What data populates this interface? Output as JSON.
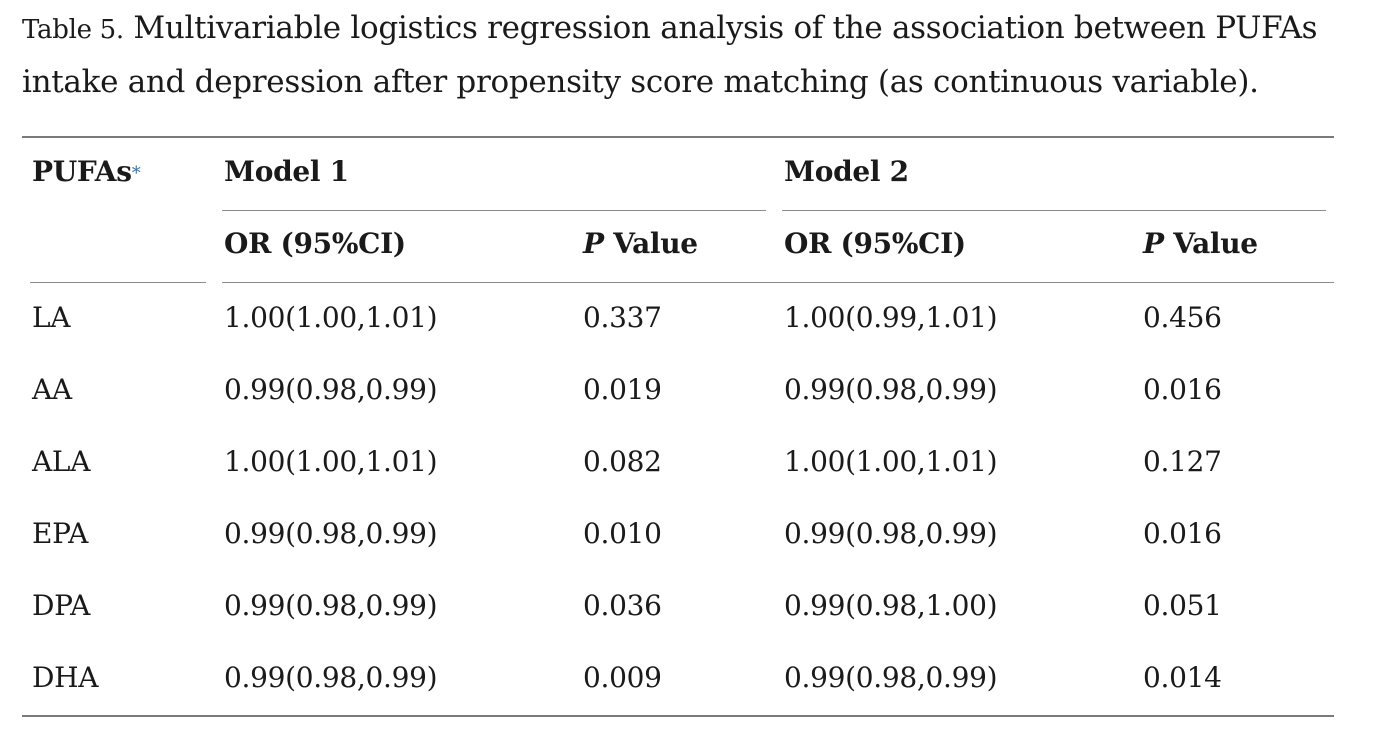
{
  "caption": {
    "label": "Table 5.",
    "text": "Multivariable logistics regression analysis of the association between PUFAs intake and depression after propensity score matching (as continuous variable)."
  },
  "header": {
    "col1": "PUFAs",
    "col1_marker": "*",
    "model1": "Model 1",
    "model2": "Model 2",
    "or_label": "OR (95%CI)",
    "p_italic": "P",
    "p_rest": " Value"
  },
  "rows": [
    {
      "name": "LA",
      "m1_or": "1.00(1.00,1.01)",
      "m1_p": "0.337",
      "m2_or": "1.00(0.99,1.01)",
      "m2_p": "0.456"
    },
    {
      "name": "AA",
      "m1_or": "0.99(0.98,0.99)",
      "m1_p": "0.019",
      "m2_or": "0.99(0.98,0.99)",
      "m2_p": "0.016"
    },
    {
      "name": "ALA",
      "m1_or": "1.00(1.00,1.01)",
      "m1_p": "0.082",
      "m2_or": "1.00(1.00,1.01)",
      "m2_p": "0.127"
    },
    {
      "name": "EPA",
      "m1_or": "0.99(0.98,0.99)",
      "m1_p": "0.010",
      "m2_or": "0.99(0.98,0.99)",
      "m2_p": "0.016"
    },
    {
      "name": "DPA",
      "m1_or": "0.99(0.98,0.99)",
      "m1_p": "0.036",
      "m2_or": "0.99(0.98,1.00)",
      "m2_p": "0.051"
    },
    {
      "name": "DHA",
      "m1_or": "0.99(0.98,0.99)",
      "m1_p": "0.009",
      "m2_or": "0.99(0.98,0.99)",
      "m2_p": "0.014"
    }
  ]
}
